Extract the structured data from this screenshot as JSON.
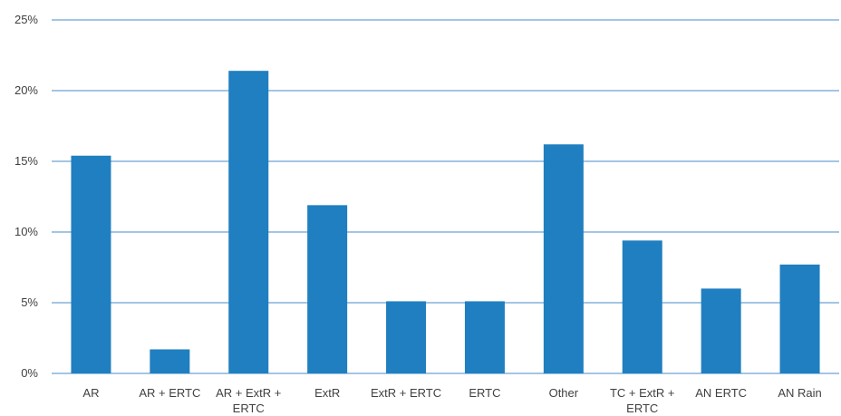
{
  "chart_data": {
    "type": "bar",
    "categories": [
      [
        "AR"
      ],
      [
        "AR + ERTC"
      ],
      [
        "AR + ExtR +",
        "ERTC"
      ],
      [
        "ExtR"
      ],
      [
        "ExtR + ERTC"
      ],
      [
        "ERTC"
      ],
      [
        "Other"
      ],
      [
        "TC + ExtR +",
        "ERTC"
      ],
      [
        "AN ERTC"
      ],
      [
        "AN Rain"
      ]
    ],
    "values": [
      15.4,
      1.7,
      21.4,
      11.9,
      5.1,
      5.1,
      16.2,
      9.4,
      6.0,
      7.7
    ],
    "ylim": [
      0,
      25
    ],
    "yticks": [
      0,
      5,
      10,
      15,
      20,
      25
    ],
    "ytick_labels": [
      "0%",
      "5%",
      "10%",
      "15%",
      "20%",
      "25%"
    ],
    "grid": true,
    "legend": "none",
    "title": "",
    "xlabel": "",
    "ylabel": "",
    "colors": {
      "bar": "#1f7fc0",
      "grid": "#4a8bc9",
      "text": "#404040"
    }
  }
}
